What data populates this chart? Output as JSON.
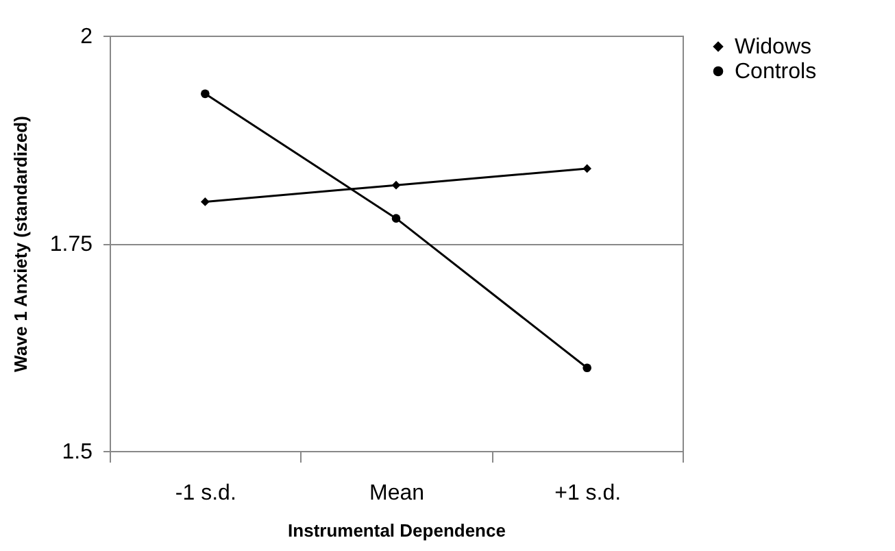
{
  "chart_data": {
    "type": "line",
    "xlabel": "Instrumental Dependence",
    "ylabel": "Wave 1 Anxiety (standardized)",
    "categories": [
      "-1 s.d.",
      "Mean",
      "+1 s.d."
    ],
    "series": [
      {
        "name": "Widows",
        "color": "#000000",
        "marker": "diamond",
        "values": [
          1.8,
          1.82,
          1.84
        ]
      },
      {
        "name": "Controls",
        "color": "#000000",
        "marker": "circle",
        "values": [
          1.93,
          1.78,
          1.6
        ]
      }
    ],
    "ylim": [
      1.5,
      2
    ],
    "yticks": [
      1.5,
      1.75,
      2
    ],
    "grid": "y",
    "legend": "right",
    "line_style": "solid"
  }
}
